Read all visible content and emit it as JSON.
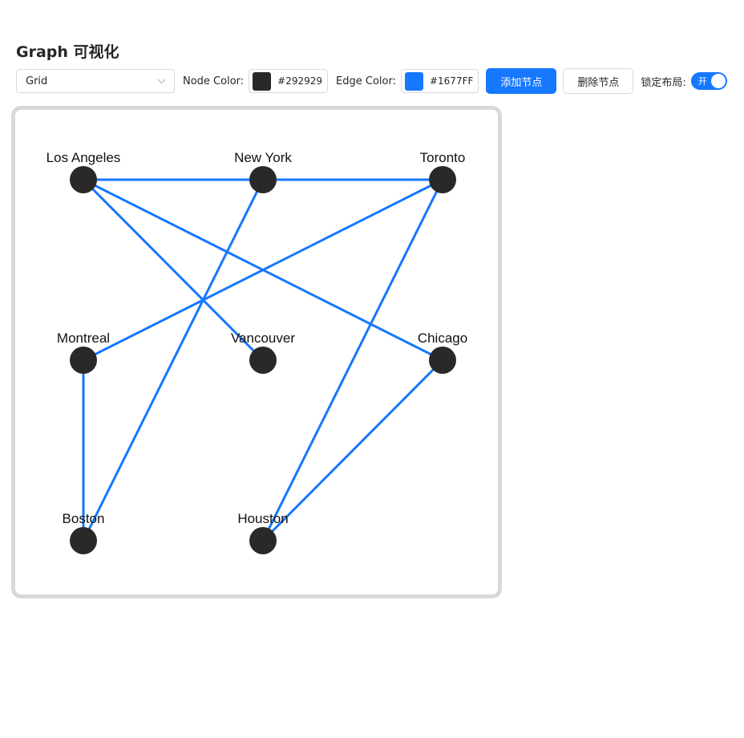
{
  "page": {
    "title": "Graph 可视化"
  },
  "toolbar": {
    "layout_select": {
      "value": "Grid"
    },
    "node_color": {
      "label": "Node Color:",
      "value": "#292929"
    },
    "edge_color": {
      "label": "Edge Color:",
      "value": "#1677FF"
    },
    "add_node_label": "添加节点",
    "delete_node_label": "删除节点",
    "lock_layout": {
      "label": "锁定布局:",
      "state_text": "开",
      "checked": true
    }
  },
  "colors": {
    "primary": "#1677ff",
    "node": "#292929",
    "edge": "#1677ff"
  },
  "graph": {
    "layout": "grid",
    "columns": 3,
    "nodes": [
      {
        "id": "Los Angeles",
        "label": "Los Angeles"
      },
      {
        "id": "New York",
        "label": "New York"
      },
      {
        "id": "Toronto",
        "label": "Toronto"
      },
      {
        "id": "Montreal",
        "label": "Montreal"
      },
      {
        "id": "Vancouver",
        "label": "Vancouver"
      },
      {
        "id": "Chicago",
        "label": "Chicago"
      },
      {
        "id": "Boston",
        "label": "Boston"
      },
      {
        "id": "Houston",
        "label": "Houston"
      }
    ],
    "edges": [
      {
        "source": "Los Angeles",
        "target": "New York"
      },
      {
        "source": "New York",
        "target": "Toronto"
      },
      {
        "source": "Los Angeles",
        "target": "Vancouver"
      },
      {
        "source": "Los Angeles",
        "target": "Chicago"
      },
      {
        "source": "New York",
        "target": "Boston"
      },
      {
        "source": "Toronto",
        "target": "Montreal"
      },
      {
        "source": "Toronto",
        "target": "Houston"
      },
      {
        "source": "Montreal",
        "target": "Boston"
      },
      {
        "source": "Chicago",
        "target": "Houston"
      }
    ]
  }
}
